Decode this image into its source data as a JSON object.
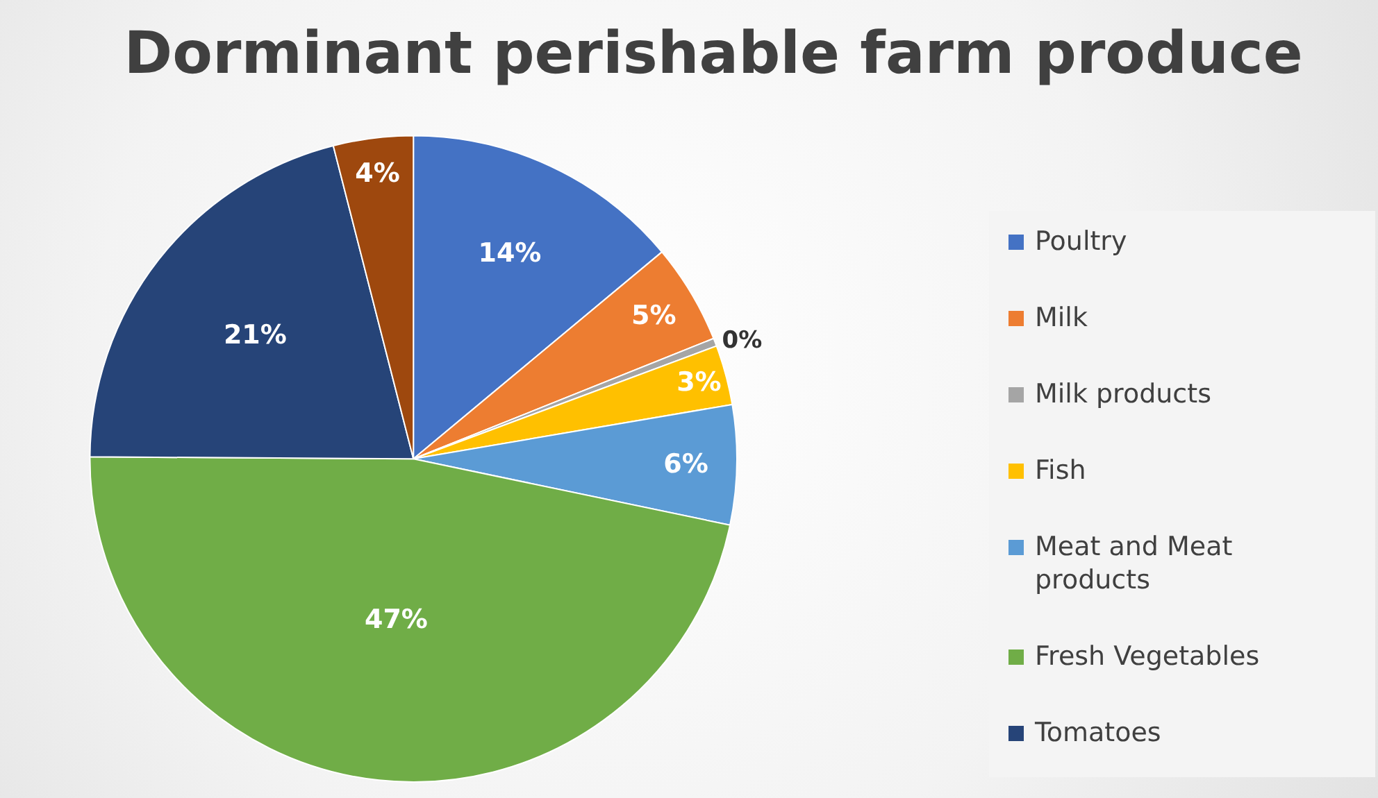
{
  "chart_data": {
    "type": "pie",
    "title": "Dorminant perishable farm produce",
    "categories": [
      "Poultry",
      "Milk",
      "Milk products",
      "Fish",
      "Meat and Meat products",
      "Fresh Vegetables",
      "Tomatoes",
      null
    ],
    "values": [
      14,
      5,
      0.4,
      3,
      6,
      47,
      21,
      4
    ],
    "value_labels": [
      "14%",
      "5%",
      "0%",
      "3%",
      "6%",
      "47%",
      "21%",
      "4%"
    ],
    "colors": [
      "#4472c4",
      "#ed7d31",
      "#a5a5a5",
      "#ffc000",
      "#5b9bd5",
      "#70ad47",
      "#264478",
      "#9e480e"
    ],
    "legend": "right"
  }
}
